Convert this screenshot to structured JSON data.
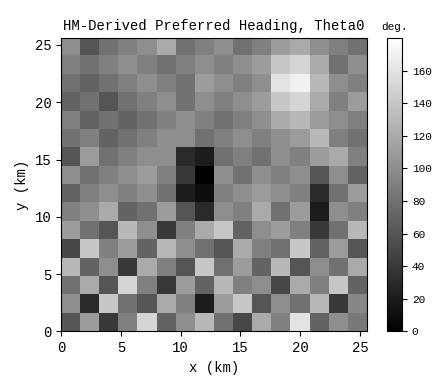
{
  "chart_data": {
    "type": "heatmap",
    "title": "HM-Derived Preferred Heading, Theta0",
    "x_label": "x (km)",
    "y_label": "y (km)",
    "xlim": [
      0,
      25.6
    ],
    "ylim": [
      0,
      25.6
    ],
    "xticks": [
      0,
      5,
      10,
      15,
      20,
      25
    ],
    "yticks": [
      0,
      5,
      10,
      15,
      20,
      25
    ],
    "color": "gray",
    "cells": [
      [
        60,
        110,
        40,
        90,
        150,
        70,
        100,
        130,
        80,
        50,
        120,
        90,
        160,
        70,
        100,
        85
      ],
      [
        100,
        30,
        140,
        80,
        60,
        120,
        90,
        20,
        110,
        140,
        60,
        100,
        80,
        130,
        40,
        95
      ],
      [
        80,
        120,
        60,
        150,
        90,
        40,
        110,
        70,
        130,
        90,
        100,
        50,
        120,
        90,
        140,
        70
      ],
      [
        130,
        70,
        100,
        40,
        120,
        90,
        60,
        140,
        80,
        110,
        70,
        130,
        60,
        100,
        80,
        120
      ],
      [
        50,
        140,
        90,
        110,
        70,
        130,
        100,
        80,
        60,
        120,
        90,
        80,
        140,
        70,
        110,
        60
      ],
      [
        110,
        80,
        60,
        130,
        100,
        40,
        90,
        120,
        140,
        70,
        100,
        110,
        90,
        40,
        80,
        130
      ],
      [
        90,
        100,
        120,
        70,
        80,
        110,
        60,
        30,
        100,
        90,
        120,
        80,
        110,
        20,
        100,
        90
      ],
      [
        70,
        90,
        100,
        90,
        100,
        80,
        20,
        10,
        90,
        100,
        110,
        100,
        90,
        30,
        80,
        110
      ],
      [
        100,
        80,
        90,
        100,
        110,
        90,
        40,
        0,
        100,
        80,
        100,
        90,
        100,
        60,
        100,
        70
      ],
      [
        60,
        110,
        80,
        90,
        100,
        100,
        30,
        20,
        80,
        90,
        80,
        100,
        90,
        110,
        120,
        90
      ],
      [
        80,
        90,
        70,
        80,
        90,
        100,
        100,
        80,
        90,
        100,
        90,
        100,
        110,
        130,
        90,
        80
      ],
      [
        90,
        70,
        80,
        70,
        80,
        90,
        100,
        90,
        80,
        90,
        100,
        120,
        130,
        110,
        100,
        90
      ],
      [
        70,
        80,
        60,
        80,
        90,
        100,
        80,
        100,
        90,
        100,
        110,
        140,
        150,
        120,
        90,
        110
      ],
      [
        80,
        70,
        80,
        90,
        100,
        90,
        80,
        110,
        100,
        90,
        100,
        160,
        170,
        130,
        100,
        90
      ],
      [
        90,
        80,
        90,
        100,
        90,
        80,
        90,
        100,
        90,
        100,
        110,
        140,
        150,
        120,
        80,
        100
      ],
      [
        100,
        60,
        80,
        90,
        100,
        120,
        80,
        90,
        100,
        80,
        90,
        110,
        120,
        100,
        90,
        80
      ]
    ],
    "colorbar": {
      "label": "deg.",
      "range": [
        0,
        180
      ],
      "ticks": [
        0,
        20,
        40,
        60,
        80,
        100,
        120,
        140,
        160
      ]
    }
  }
}
